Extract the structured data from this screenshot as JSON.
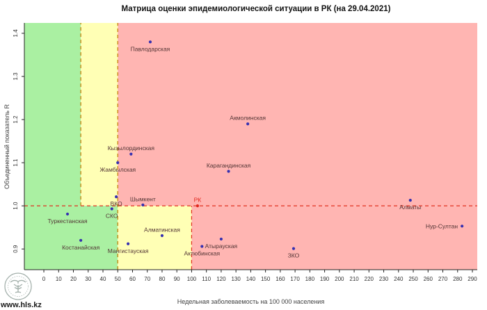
{
  "watermark": {
    "text": "www.hls.kz",
    "logo_icon": "tree-and-open-book-emblem"
  },
  "chart_data": {
    "type": "scatter",
    "title": "Матрица оценки эпидемиологической ситуации в РК (на 29.04.2021)",
    "xlabel": "Недельная заболеваемость на 100 000 населения",
    "ylabel": "Объединенный показатель R",
    "xlim": [
      -13.2,
      293.3
    ],
    "ylim": [
      0.852,
      1.424
    ],
    "x_ticks": [
      0,
      10,
      20,
      30,
      40,
      50,
      60,
      70,
      80,
      90,
      100,
      110,
      120,
      130,
      140,
      150,
      160,
      170,
      180,
      190,
      200,
      210,
      220,
      230,
      240,
      250,
      260,
      270,
      280,
      290
    ],
    "y_ticks": [
      0.9,
      1.0,
      1.1,
      1.2,
      1.3,
      1.4
    ],
    "grid": false,
    "legend": "none",
    "colors": {
      "zone_green": "#aaf0a2",
      "zone_yellow": "#ffffb5",
      "zone_pink": "#ffb5b2",
      "point": "#3530b0",
      "point_highlight": "#e0261d",
      "boundary_orange": "#bf7a00",
      "boundary_red": "#e03020"
    },
    "zones": [
      {
        "name": "green-upper",
        "x0": "min",
        "x1": 25,
        "r0": 1.0,
        "r1": "max",
        "color": "zone_green"
      },
      {
        "name": "yellow-upper",
        "x0": 25,
        "x1": 50,
        "r0": 1.0,
        "r1": "max",
        "color": "zone_yellow"
      },
      {
        "name": "pink-upper",
        "x0": 50,
        "x1": "max",
        "r0": 1.0,
        "r1": "max",
        "color": "zone_pink"
      },
      {
        "name": "green-lower",
        "x0": "min",
        "x1": 50,
        "r0": "min",
        "r1": 1.0,
        "color": "zone_green"
      },
      {
        "name": "yellow-lower",
        "x0": 50,
        "x1": 100,
        "r0": "min",
        "r1": 1.0,
        "color": "zone_yellow"
      },
      {
        "name": "pink-lower",
        "x0": 100,
        "x1": "max",
        "r0": "min",
        "r1": 1.0,
        "color": "zone_pink"
      }
    ],
    "threshold_lines": [
      {
        "name": "incidence-25-upper",
        "orient": "v",
        "at": 25,
        "from": 1.0,
        "to": "max",
        "color": "boundary_orange"
      },
      {
        "name": "incidence-50-full",
        "orient": "v",
        "at": 50,
        "from": "min",
        "to": "max",
        "color": "boundary_orange"
      },
      {
        "name": "incidence-100-lower",
        "orient": "v",
        "at": 100,
        "from": "min",
        "to": 1.0,
        "color": "boundary_red"
      },
      {
        "name": "r-equals-1",
        "orient": "h",
        "at": 1.0,
        "from": "min",
        "to": "max",
        "color": "boundary_red"
      }
    ],
    "points": [
      {
        "name": "Павлодарская",
        "x": 72,
        "r": 1.38,
        "label_pos": "below"
      },
      {
        "name": "Акмолинская",
        "x": 138,
        "r": 1.19,
        "label_pos": "above"
      },
      {
        "name": "Кызылординская",
        "x": 59,
        "r": 1.12,
        "label_pos": "above"
      },
      {
        "name": "Жамбылская",
        "x": 50,
        "r": 1.1,
        "label_pos": "below"
      },
      {
        "name": "Карагандинская",
        "x": 125,
        "r": 1.08,
        "label_pos": "above"
      },
      {
        "name": "ВКО",
        "x": 49,
        "r": 1.021,
        "label_pos": "below"
      },
      {
        "name": "Алматы",
        "x": 248,
        "r": 1.013,
        "label_pos": "below"
      },
      {
        "name": "Шымкент",
        "x": 67,
        "r": 1.002,
        "label_pos": "above"
      },
      {
        "name": "РК",
        "x": 104,
        "r": 1.0,
        "label_pos": "above",
        "highlight": true
      },
      {
        "name": "СКО",
        "x": 46,
        "r": 0.993,
        "label_pos": "below"
      },
      {
        "name": "Туркестанская",
        "x": 16,
        "r": 0.981,
        "label_pos": "below"
      },
      {
        "name": "Нур-Султан",
        "x": 283,
        "r": 0.953,
        "label_pos": "left"
      },
      {
        "name": "Алматинская",
        "x": 80,
        "r": 0.931,
        "label_pos": "above"
      },
      {
        "name": "Атырауская",
        "x": 120,
        "r": 0.923,
        "label_pos": "below"
      },
      {
        "name": "Костанайская",
        "x": 25,
        "r": 0.92,
        "label_pos": "below"
      },
      {
        "name": "Мангистауская",
        "x": 57,
        "r": 0.912,
        "label_pos": "below"
      },
      {
        "name": "Актюбинская",
        "x": 107,
        "r": 0.906,
        "label_pos": "below"
      },
      {
        "name": "ЗКО",
        "x": 169,
        "r": 0.901,
        "label_pos": "below"
      }
    ]
  }
}
